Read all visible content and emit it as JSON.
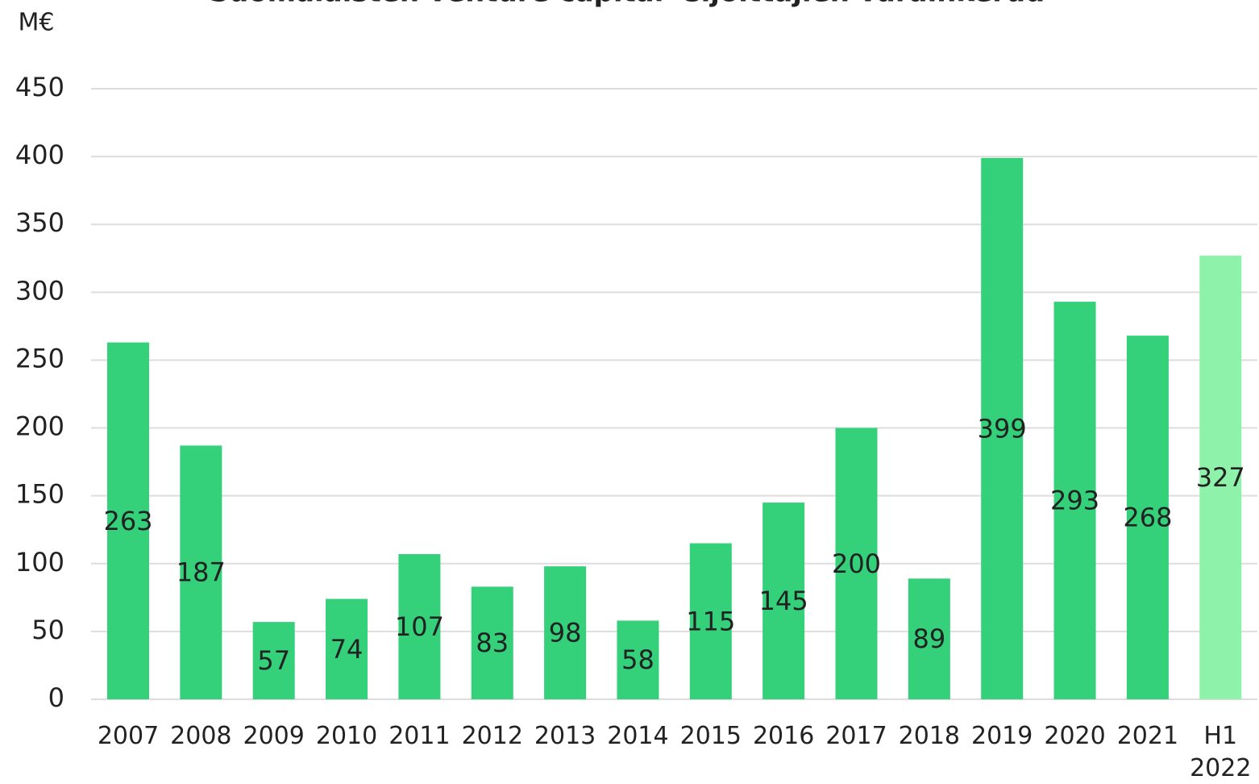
{
  "chart_data": {
    "type": "bar",
    "title": "Suomalaisten venture capital -sijoittajien varainkeruu",
    "y_label": "M€",
    "categories": [
      "2007",
      "2008",
      "2009",
      "2010",
      "2011",
      "2012",
      "2013",
      "2014",
      "2015",
      "2016",
      "2017",
      "2018",
      "2019",
      "2020",
      "2021",
      "H1 2022"
    ],
    "values": [
      263,
      187,
      57,
      74,
      107,
      83,
      98,
      58,
      115,
      145,
      200,
      89,
      399,
      293,
      268,
      327
    ],
    "colors": [
      "#34d07a",
      "#34d07a",
      "#34d07a",
      "#34d07a",
      "#34d07a",
      "#34d07a",
      "#34d07a",
      "#34d07a",
      "#34d07a",
      "#34d07a",
      "#34d07a",
      "#34d07a",
      "#34d07a",
      "#34d07a",
      "#34d07a",
      "#8ff2aa"
    ],
    "ylim": [
      0,
      450
    ],
    "yticks": [
      0,
      50,
      100,
      150,
      200,
      250,
      300,
      350,
      400,
      450
    ],
    "grid": true
  }
}
